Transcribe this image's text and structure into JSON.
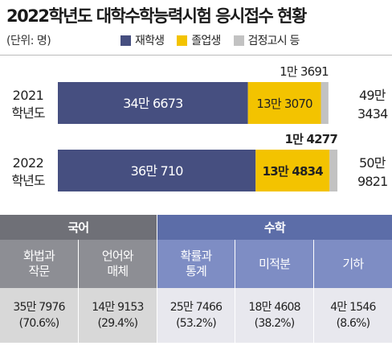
{
  "title": "2022학년도 대학수학능력시험 응시접수 현황",
  "unit": "(단위: 명)",
  "colors": {
    "재학생": "#464f80",
    "졸업생": "#f3c300",
    "검정고시 등": "#c2c2c2"
  },
  "chart_data": {
    "type": "bar",
    "orientation": "horizontal",
    "stacked": true,
    "categories": [
      "2021 학년도",
      "2022 학년도"
    ],
    "series": [
      {
        "name": "재학생",
        "values": [
          346673,
          360710
        ],
        "labels": [
          "34만 6673",
          "36만 710"
        ]
      },
      {
        "name": "졸업생",
        "values": [
          133070,
          134834
        ],
        "labels": [
          "13만 3070",
          "13만 4834"
        ]
      },
      {
        "name": "검정고시 등",
        "values": [
          13691,
          14277
        ],
        "labels": [
          "1만 3691",
          "1만 4277"
        ]
      }
    ],
    "totals": [
      "49만 3434",
      "50만 9821"
    ],
    "legend": "top"
  },
  "table": {
    "groups": [
      {
        "name": "국어",
        "subjects": [
          {
            "name": "화법과 작문",
            "count": "35만 7976",
            "pct": "(70.6%)"
          },
          {
            "name": "언어와 매체",
            "count": "14만 9153",
            "pct": "(29.4%)"
          }
        ]
      },
      {
        "name": "수학",
        "subjects": [
          {
            "name": "확률과 통계",
            "count": "25만 7466",
            "pct": "(53.2%)"
          },
          {
            "name": "미적분",
            "count": "18만 4608",
            "pct": "(38.2%)"
          },
          {
            "name": "기하",
            "count": "4만 1546",
            "pct": "(8.6%)"
          }
        ]
      }
    ]
  }
}
